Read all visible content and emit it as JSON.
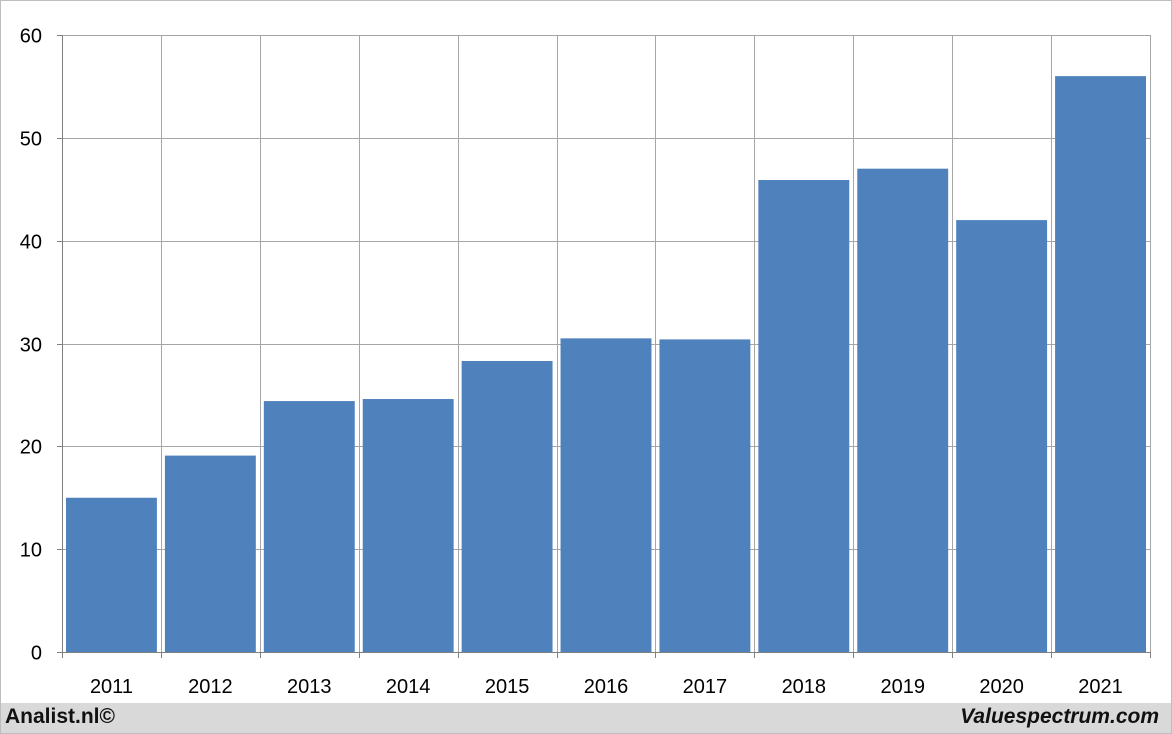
{
  "footer": {
    "left_text": "Analist.nl©",
    "right_text": "Valuespectrum.com"
  },
  "colors": {
    "bar": "#4f81bd",
    "grid": "#a6a6a6",
    "axis": "#808080",
    "footer_bg": "#d9d9d9"
  },
  "chart_data": {
    "type": "bar",
    "categories": [
      "2011",
      "2012",
      "2013",
      "2014",
      "2015",
      "2016",
      "2017",
      "2018",
      "2019",
      "2020",
      "2021"
    ],
    "values": [
      15.0,
      19.1,
      24.4,
      24.6,
      28.3,
      30.5,
      30.4,
      45.9,
      47.0,
      42.0,
      56.0
    ],
    "yticks": [
      "0",
      "10",
      "20",
      "30",
      "40",
      "50",
      "60"
    ],
    "ylim": [
      0,
      60
    ],
    "grid": true,
    "legend": "none"
  }
}
